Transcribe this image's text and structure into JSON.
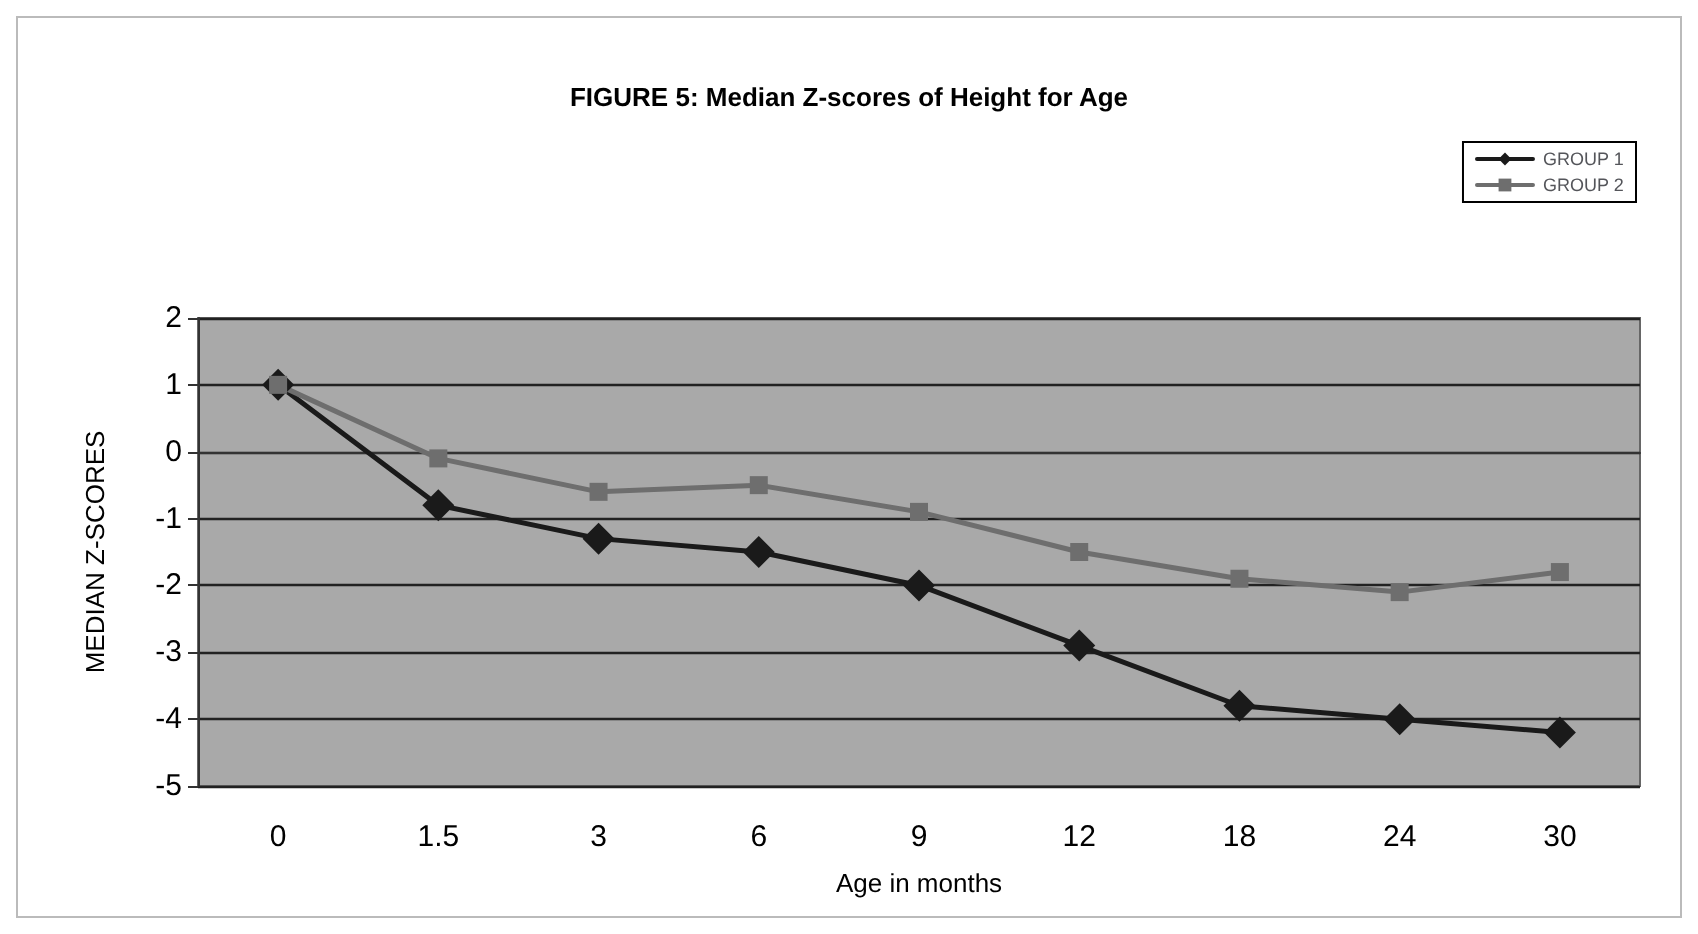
{
  "chart_data": {
    "type": "line",
    "title": "FIGURE 5: Median Z-scores of Height for Age",
    "xlabel": "Age in months",
    "ylabel": "MEDIAN Z-SCORES",
    "categories": [
      "0",
      "1.5",
      "3",
      "6",
      "9",
      "12",
      "18",
      "24",
      "30"
    ],
    "series": [
      {
        "name": "GROUP 1",
        "color": "#1a1a1a",
        "marker": "diamond",
        "values": [
          1,
          -0.8,
          -1.3,
          -1.5,
          -2.0,
          -2.9,
          -3.8,
          -4.0,
          -4.2
        ]
      },
      {
        "name": "GROUP 2",
        "color": "#6e6e6e",
        "marker": "square",
        "values": [
          1,
          -0.1,
          -0.6,
          -0.5,
          -0.9,
          -1.5,
          -1.9,
          -2.1,
          -1.8
        ]
      }
    ],
    "ylim": [
      -5,
      2
    ],
    "yticks": [
      -5,
      -4,
      -3,
      -2,
      -1,
      0,
      1,
      2
    ],
    "grid": "y",
    "legend": "top right",
    "line_style": "solid"
  }
}
